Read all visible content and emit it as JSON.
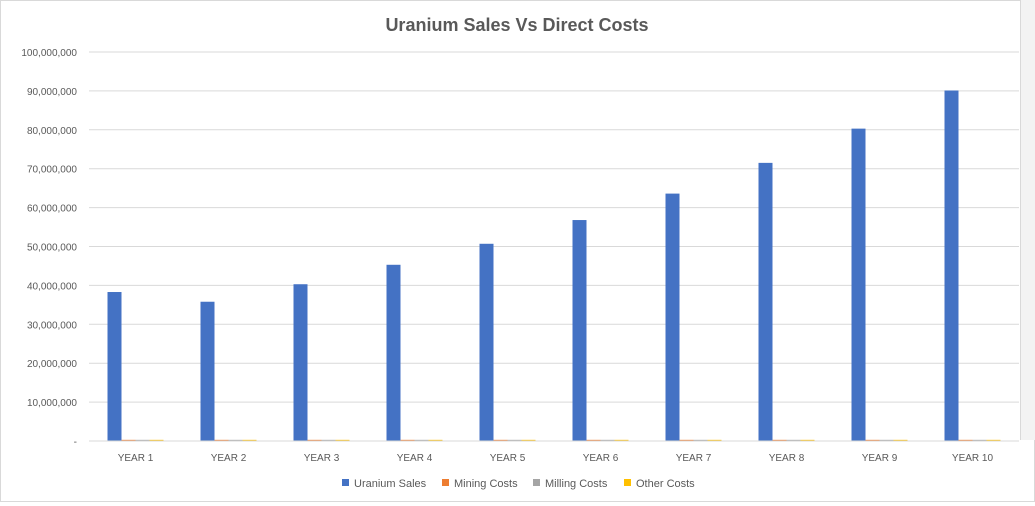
{
  "chart_data": {
    "type": "bar",
    "title": "Uranium Sales Vs Direct Costs",
    "categories": [
      "YEAR 1",
      "YEAR 2",
      "YEAR 3",
      "YEAR 4",
      "YEAR 5",
      "YEAR 6",
      "YEAR 7",
      "YEAR 8",
      "YEAR 9",
      "YEAR 10"
    ],
    "series": [
      {
        "name": "Uranium Sales",
        "color": "#4472c4",
        "values": [
          38300000,
          35800000,
          40300000,
          45300000,
          50700000,
          56800000,
          63600000,
          71500000,
          80300000,
          90100000
        ]
      },
      {
        "name": "Mining Costs",
        "color": "#ed7d31",
        "values": [
          300000,
          300000,
          300000,
          300000,
          300000,
          300000,
          300000,
          300000,
          300000,
          300000
        ]
      },
      {
        "name": "Milling Costs",
        "color": "#a5a5a5",
        "values": [
          300000,
          300000,
          300000,
          300000,
          300000,
          300000,
          300000,
          300000,
          300000,
          300000
        ]
      },
      {
        "name": "Other Costs",
        "color": "#ffc000",
        "values": [
          300000,
          300000,
          300000,
          300000,
          300000,
          300000,
          300000,
          300000,
          300000,
          300000
        ]
      }
    ],
    "ylim": [
      0,
      100000000
    ],
    "yticks": [
      "-",
      "10,000,000",
      "20,000,000",
      "30,000,000",
      "40,000,000",
      "50,000,000",
      "60,000,000",
      "70,000,000",
      "80,000,000",
      "90,000,000",
      "100,000,000"
    ],
    "grid": true,
    "legend": "bottom"
  }
}
